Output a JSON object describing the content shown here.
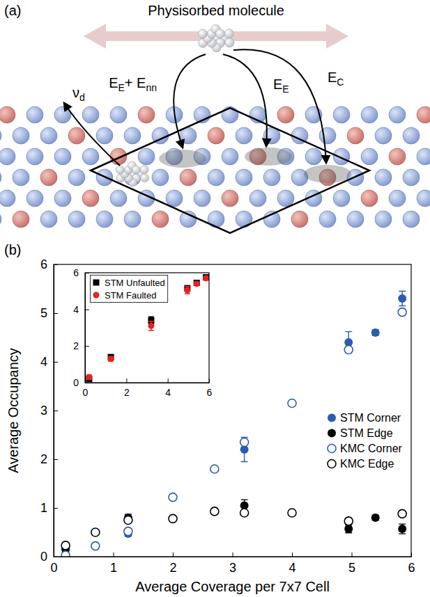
{
  "diagram": {
    "panel": "(a)",
    "title": "Physisorbed molecule",
    "rates": [
      [
        {
          "base": "E",
          "sub": "E"
        },
        {
          "base": "+ E",
          "sub": "nn"
        }
      ],
      [
        {
          "base": "E",
          "sub": "E"
        }
      ],
      [
        {
          "base": "E",
          "sub": "C"
        }
      ],
      [
        {
          "base": "ν",
          "sub": "d"
        }
      ]
    ]
  },
  "chart_data": [
    {
      "type": "scatter",
      "annotations": [
        "(b)"
      ],
      "x_label": "Average Coverage per 7x7 Cell",
      "y_label": "Average Occupancy",
      "xlim": [
        0,
        6
      ],
      "ylim": [
        0,
        6
      ],
      "xticks": [
        0,
        1,
        2,
        3,
        4,
        5,
        6
      ],
      "yticks": [
        0,
        1,
        2,
        3,
        4,
        5,
        6
      ],
      "legend": "right",
      "series": [
        {
          "name": "STM Corner",
          "color": "#2a5cb0",
          "marker": "filled",
          "x": [
            0.2,
            1.25,
            3.2,
            4.95,
            5.4,
            5.85
          ],
          "values": [
            0.03,
            0.47,
            2.2,
            4.4,
            4.6,
            5.3
          ],
          "errors": [
            0.03,
            0.05,
            0.25,
            0.22,
            0.06,
            0.15
          ]
        },
        {
          "name": "STM Edge",
          "color": "#000000",
          "marker": "filled",
          "x": [
            0.2,
            1.25,
            3.2,
            4.95,
            5.4,
            5.85
          ],
          "values": [
            0.15,
            0.8,
            1.05,
            0.57,
            0.8,
            0.57
          ],
          "errors": [
            0.05,
            0.07,
            0.12,
            0.08,
            0.05,
            0.1
          ]
        },
        {
          "name": "KMC Corner",
          "color": "#2a5cb0",
          "marker": "open",
          "x": [
            0.2,
            0.7,
            1.25,
            2.0,
            2.7,
            3.2,
            4.0,
            4.95,
            5.85
          ],
          "values": [
            0.03,
            0.22,
            0.52,
            1.22,
            1.8,
            2.35,
            3.15,
            4.25,
            5.02
          ]
        },
        {
          "name": "KMC Edge",
          "color": "#000000",
          "marker": "open",
          "x": [
            0.2,
            0.7,
            1.25,
            2.0,
            2.7,
            3.2,
            4.0,
            4.95,
            5.85
          ],
          "values": [
            0.23,
            0.5,
            0.75,
            0.78,
            0.93,
            0.9,
            0.9,
            0.73,
            0.88
          ]
        }
      ]
    },
    {
      "type": "scatter",
      "xlim": [
        0,
        6
      ],
      "ylim": [
        0,
        6
      ],
      "xticks": [
        0,
        2,
        4,
        6
      ],
      "yticks": [
        0,
        2,
        4,
        6
      ],
      "legend": "upper left",
      "series": [
        {
          "name": "STM Unfaulted",
          "color": "#000000",
          "marker": "square",
          "x": [
            0.2,
            1.25,
            3.2,
            4.95,
            5.4,
            5.85
          ],
          "values": [
            0.2,
            1.4,
            3.4,
            5.15,
            5.45,
            5.75
          ],
          "errors": [
            0.1,
            0.12,
            0.2,
            0.15,
            0.08,
            0.1
          ]
        },
        {
          "name": "STM Faulted",
          "color": "#e8211f",
          "marker": "circle",
          "x": [
            0.2,
            1.25,
            3.2,
            4.95,
            5.4,
            5.85
          ],
          "values": [
            0.3,
            1.3,
            3.1,
            5.05,
            5.4,
            5.7
          ],
          "errors": [
            0.12,
            0.12,
            0.25,
            0.2,
            0.08,
            0.1
          ]
        }
      ]
    }
  ]
}
